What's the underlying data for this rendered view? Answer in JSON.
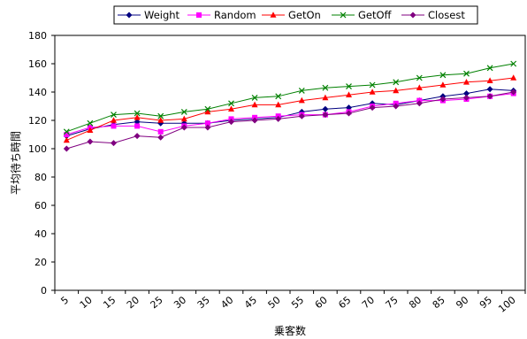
{
  "chart_data": {
    "type": "line",
    "xlabel": "乗客数",
    "ylabel": "平均待ち時間",
    "ylim": [
      0,
      180
    ],
    "yticks": [
      0,
      20,
      40,
      60,
      80,
      100,
      120,
      140,
      160,
      180
    ],
    "categories": [
      "5",
      "10",
      "15",
      "20",
      "25",
      "30",
      "35",
      "40",
      "45",
      "50",
      "55",
      "60",
      "65",
      "70",
      "75",
      "80",
      "85",
      "90",
      "95",
      "100"
    ],
    "grid": false,
    "legend": "top",
    "series": [
      {
        "name": "Weight",
        "color": "#000080",
        "marker": "diamond",
        "values": [
          109,
          114,
          117,
          119,
          118,
          118,
          118,
          120,
          121,
          122,
          126,
          128,
          129,
          132,
          131,
          134,
          137,
          139,
          142,
          141
        ]
      },
      {
        "name": "Random",
        "color": "#ff00ff",
        "marker": "square",
        "values": [
          110,
          115,
          116,
          116,
          112,
          116,
          118,
          121,
          122,
          123,
          124,
          124,
          126,
          130,
          132,
          134,
          134,
          135,
          137,
          139
        ]
      },
      {
        "name": "GetOn",
        "color": "#ff0000",
        "marker": "triangle",
        "values": [
          106,
          113,
          120,
          122,
          120,
          121,
          126,
          128,
          131,
          131,
          134,
          136,
          138,
          140,
          141,
          143,
          145,
          147,
          148,
          150
        ]
      },
      {
        "name": "GetOff",
        "color": "#008000",
        "marker": "x",
        "values": [
          112,
          118,
          124,
          125,
          123,
          126,
          128,
          132,
          136,
          137,
          141,
          143,
          144,
          145,
          147,
          150,
          152,
          153,
          157,
          160
        ]
      },
      {
        "name": "Closest",
        "color": "#800080",
        "marker": "diamond",
        "values": [
          100,
          105,
          104,
          109,
          108,
          115,
          115,
          119,
          120,
          121,
          123,
          124,
          125,
          129,
          130,
          132,
          135,
          136,
          137,
          140
        ]
      }
    ]
  }
}
